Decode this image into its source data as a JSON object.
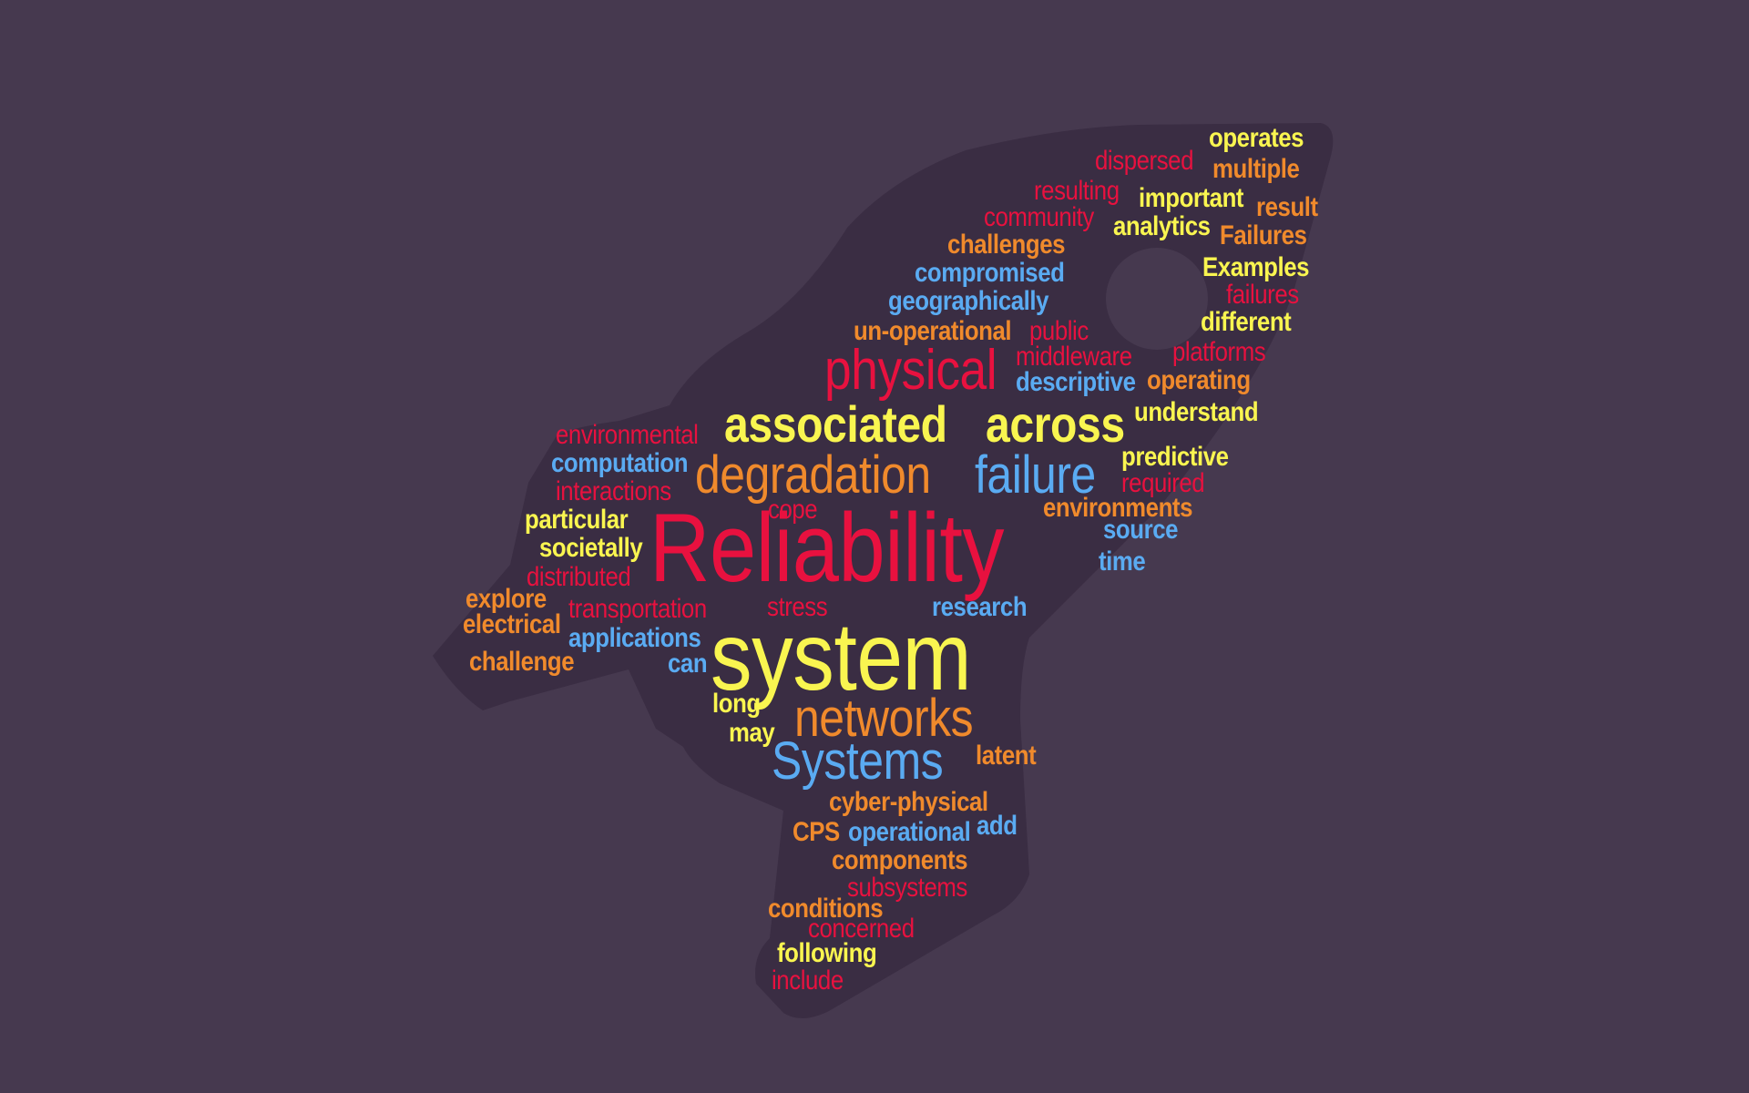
{
  "palette": {
    "background": "#46394f",
    "shape": "#3a2d43",
    "red": "#e8113f",
    "yellow": "#f9f550",
    "orange": "#f08a2c",
    "blue": "#5aabf2"
  },
  "words": [
    {
      "text": "operates",
      "color": "yellow",
      "weight": "bold"
    },
    {
      "text": "dispersed",
      "color": "red",
      "weight": "normal"
    },
    {
      "text": "multiple",
      "color": "orange",
      "weight": "bold"
    },
    {
      "text": "resulting",
      "color": "red",
      "weight": "normal"
    },
    {
      "text": "important",
      "color": "yellow",
      "weight": "bold"
    },
    {
      "text": "result",
      "color": "orange",
      "weight": "bold"
    },
    {
      "text": "community",
      "color": "red",
      "weight": "normal"
    },
    {
      "text": "analytics",
      "color": "yellow",
      "weight": "bold"
    },
    {
      "text": "Failures",
      "color": "orange",
      "weight": "bold"
    },
    {
      "text": "challenges",
      "color": "orange",
      "weight": "bold"
    },
    {
      "text": "Examples",
      "color": "yellow",
      "weight": "bold"
    },
    {
      "text": "compromised",
      "color": "blue",
      "weight": "bold"
    },
    {
      "text": "failures",
      "color": "red",
      "weight": "normal"
    },
    {
      "text": "geographically",
      "color": "blue",
      "weight": "bold"
    },
    {
      "text": "different",
      "color": "yellow",
      "weight": "bold"
    },
    {
      "text": "un-operational",
      "color": "orange",
      "weight": "bold"
    },
    {
      "text": "public",
      "color": "red",
      "weight": "normal"
    },
    {
      "text": "middleware",
      "color": "red",
      "weight": "normal"
    },
    {
      "text": "platforms",
      "color": "red",
      "weight": "normal"
    },
    {
      "text": "physical",
      "color": "red",
      "weight": "normal"
    },
    {
      "text": "descriptive",
      "color": "blue",
      "weight": "bold"
    },
    {
      "text": "operating",
      "color": "orange",
      "weight": "bold"
    },
    {
      "text": "associated",
      "color": "yellow",
      "weight": "bold"
    },
    {
      "text": "across",
      "color": "yellow",
      "weight": "bold"
    },
    {
      "text": "understand",
      "color": "yellow",
      "weight": "bold"
    },
    {
      "text": "environmental",
      "color": "red",
      "weight": "normal"
    },
    {
      "text": "computation",
      "color": "blue",
      "weight": "bold"
    },
    {
      "text": "degradation",
      "color": "orange",
      "weight": "normal"
    },
    {
      "text": "failure",
      "color": "blue",
      "weight": "normal"
    },
    {
      "text": "predictive",
      "color": "yellow",
      "weight": "bold"
    },
    {
      "text": "interactions",
      "color": "red",
      "weight": "normal"
    },
    {
      "text": "required",
      "color": "red",
      "weight": "normal"
    },
    {
      "text": "cope",
      "color": "red",
      "weight": "normal"
    },
    {
      "text": "environments",
      "color": "orange",
      "weight": "bold"
    },
    {
      "text": "particular",
      "color": "yellow",
      "weight": "bold"
    },
    {
      "text": "Reliability",
      "color": "red",
      "weight": "normal"
    },
    {
      "text": "source",
      "color": "blue",
      "weight": "bold"
    },
    {
      "text": "societally",
      "color": "yellow",
      "weight": "bold"
    },
    {
      "text": "time",
      "color": "blue",
      "weight": "bold"
    },
    {
      "text": "distributed",
      "color": "red",
      "weight": "normal"
    },
    {
      "text": "explore",
      "color": "orange",
      "weight": "bold"
    },
    {
      "text": "transportation",
      "color": "red",
      "weight": "normal"
    },
    {
      "text": "stress",
      "color": "red",
      "weight": "normal"
    },
    {
      "text": "research",
      "color": "blue",
      "weight": "bold"
    },
    {
      "text": "electrical",
      "color": "orange",
      "weight": "bold"
    },
    {
      "text": "applications",
      "color": "blue",
      "weight": "bold"
    },
    {
      "text": "system",
      "color": "yellow",
      "weight": "normal"
    },
    {
      "text": "challenge",
      "color": "orange",
      "weight": "bold"
    },
    {
      "text": "can",
      "color": "blue",
      "weight": "bold"
    },
    {
      "text": "long",
      "color": "yellow",
      "weight": "bold"
    },
    {
      "text": "networks",
      "color": "orange",
      "weight": "normal"
    },
    {
      "text": "may",
      "color": "yellow",
      "weight": "bold"
    },
    {
      "text": "Systems",
      "color": "blue",
      "weight": "normal"
    },
    {
      "text": "latent",
      "color": "orange",
      "weight": "bold"
    },
    {
      "text": "cyber-physical",
      "color": "orange",
      "weight": "bold"
    },
    {
      "text": "CPS",
      "color": "orange",
      "weight": "bold"
    },
    {
      "text": "operational",
      "color": "blue",
      "weight": "bold"
    },
    {
      "text": "add",
      "color": "blue",
      "weight": "bold"
    },
    {
      "text": "components",
      "color": "orange",
      "weight": "bold"
    },
    {
      "text": "subsystems",
      "color": "red",
      "weight": "normal"
    },
    {
      "text": "conditions",
      "color": "orange",
      "weight": "bold"
    },
    {
      "text": "concerned",
      "color": "red",
      "weight": "normal"
    },
    {
      "text": "following",
      "color": "yellow",
      "weight": "bold"
    },
    {
      "text": "include",
      "color": "red",
      "weight": "normal"
    }
  ]
}
